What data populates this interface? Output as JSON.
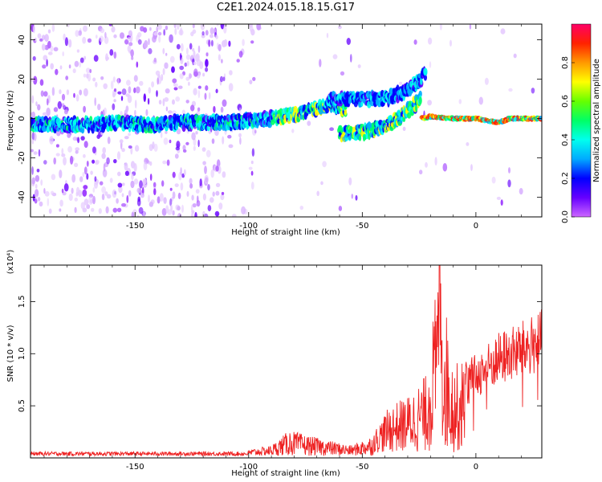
{
  "title": "C2E1.2024.015.18.15.G17",
  "chart_data": [
    {
      "type": "heatmap",
      "xlabel": "Height of straight line (km)",
      "ylabel": "Frequency (Hz)",
      "xlim": [
        -196,
        29
      ],
      "ylim": [
        -50,
        48
      ],
      "xticks": [
        -150,
        -100,
        -50,
        0
      ],
      "yticks": [
        -40,
        -20,
        0,
        20,
        40
      ],
      "colorbar": {
        "label": "Normalized spectral amplitude",
        "range": [
          0,
          1
        ],
        "ticks": [
          0.0,
          0.2,
          0.4,
          0.6,
          0.8
        ],
        "colors": [
          "#cc66ff",
          "#6600ff",
          "#0000ff",
          "#00aaff",
          "#00ffee",
          "#00ff66",
          "#66ff00",
          "#ffff00",
          "#ff9900",
          "#ff2200",
          "#ff0066"
        ]
      },
      "ridges": [
        {
          "segment": "main",
          "points": [
            [
              -196,
              -3
            ],
            [
              -180,
              -3
            ],
            [
              -170,
              -3
            ],
            [
              -160,
              -2
            ],
            [
              -150,
              -3
            ],
            [
              -140,
              -3
            ],
            [
              -130,
              -2
            ],
            [
              -120,
              -2
            ],
            [
              -110,
              -2
            ],
            [
              -100,
              -1
            ],
            [
              -90,
              0
            ],
            [
              -80,
              2
            ],
            [
              -70,
              5
            ],
            [
              -62,
              7
            ],
            [
              -57,
              4
            ]
          ]
        },
        {
          "segment": "lower",
          "points": [
            [
              -60,
              -8
            ],
            [
              -50,
              -7
            ],
            [
              -40,
              -4
            ],
            [
              -35,
              -1
            ],
            [
              -28,
              6
            ],
            [
              -24,
              10
            ]
          ]
        },
        {
          "segment": "upper",
          "points": [
            [
              -65,
              10
            ],
            [
              -50,
              10
            ],
            [
              -40,
              10
            ],
            [
              -30,
              14
            ],
            [
              -22,
              23
            ]
          ]
        },
        {
          "segment": "tail",
          "points": [
            [
              -24,
              0
            ],
            [
              -20,
              1
            ],
            [
              -10,
              0
            ],
            [
              0,
              0
            ],
            [
              5,
              -1
            ],
            [
              10,
              -2
            ],
            [
              15,
              0
            ],
            [
              20,
              0
            ],
            [
              29,
              0
            ]
          ]
        }
      ]
    },
    {
      "type": "line",
      "xlabel": "Height of straight line (km)",
      "ylabel": "SNR (10 * v/v)",
      "yscale_label": "(x10⁴)",
      "xlim": [
        -196,
        29
      ],
      "ylim": [
        0,
        1.85
      ],
      "xticks": [
        -150,
        -100,
        -50,
        0
      ],
      "yticks": [
        0.5,
        1.0,
        1.5
      ],
      "series": [
        {
          "color": "#ee2222",
          "envelope": [
            {
              "x": -196,
              "y": 0.04
            },
            {
              "x": -150,
              "y": 0.05
            },
            {
              "x": -110,
              "y": 0.04
            },
            {
              "x": -100,
              "y": 0.06
            },
            {
              "x": -90,
              "y": 0.1
            },
            {
              "x": -82,
              "y": 0.25
            },
            {
              "x": -75,
              "y": 0.2
            },
            {
              "x": -65,
              "y": 0.15
            },
            {
              "x": -55,
              "y": 0.1
            },
            {
              "x": -45,
              "y": 0.2
            },
            {
              "x": -38,
              "y": 0.45
            },
            {
              "x": -30,
              "y": 0.55
            },
            {
              "x": -22,
              "y": 0.75
            },
            {
              "x": -16,
              "y": 1.85
            },
            {
              "x": -10,
              "y": 0.85
            },
            {
              "x": 0,
              "y": 0.95
            },
            {
              "x": 10,
              "y": 1.15
            },
            {
              "x": 20,
              "y": 1.25
            },
            {
              "x": 29,
              "y": 1.36
            }
          ]
        }
      ]
    }
  ]
}
